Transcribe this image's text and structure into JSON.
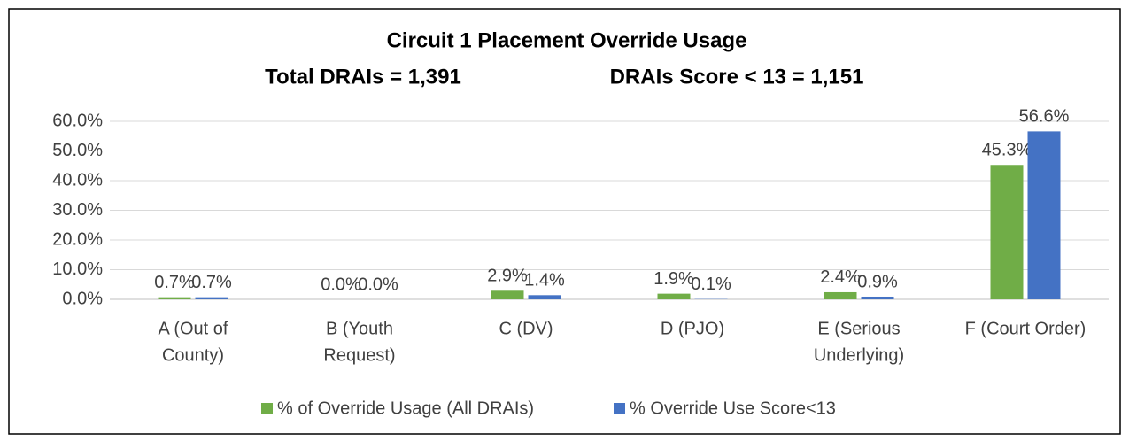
{
  "chart_data": {
    "type": "bar",
    "title": "Circuit 1 Placement Override Usage",
    "subtitle": [
      "Total DRAIs = 1,391",
      "DRAIs Score < 13 = 1,151"
    ],
    "categories": [
      [
        "A (Out of",
        "County)"
      ],
      [
        "B (Youth",
        "Request)"
      ],
      [
        "C (DV)"
      ],
      [
        "D (PJO)"
      ],
      [
        "E (Serious",
        "Underlying)"
      ],
      [
        "F (Court Order)"
      ]
    ],
    "series": [
      {
        "name": "% of Override Usage (All DRAIs)",
        "color": "#70ad47",
        "values": [
          0.7,
          0,
          2.9,
          1.9,
          2.4,
          45.3
        ],
        "value_labels": [
          "0.7%",
          "0.0%",
          "2.9%",
          "1.9%",
          "2.4%",
          "45.3%"
        ]
      },
      {
        "name": "% Override Use Score<13",
        "color": "#4472c4",
        "values": [
          0.7,
          0,
          1.4,
          0.1,
          0.9,
          56.6
        ],
        "value_labels": [
          "0.7%",
          "0.0%",
          "1.4%",
          "0.1%",
          "0.9%",
          "56.6%"
        ]
      }
    ],
    "ylim": [
      0,
      60
    ],
    "yticks": [
      {
        "value": 0,
        "label": "0.0%"
      },
      {
        "value": 10,
        "label": "10.0%"
      },
      {
        "value": 20,
        "label": "20.0%"
      },
      {
        "value": 30,
        "label": "30.0%"
      },
      {
        "value": 40,
        "label": "40.0%"
      },
      {
        "value": 50,
        "label": "50.0%"
      },
      {
        "value": 60,
        "label": "60.0%"
      }
    ],
    "grid": true,
    "legend": "bottom"
  }
}
